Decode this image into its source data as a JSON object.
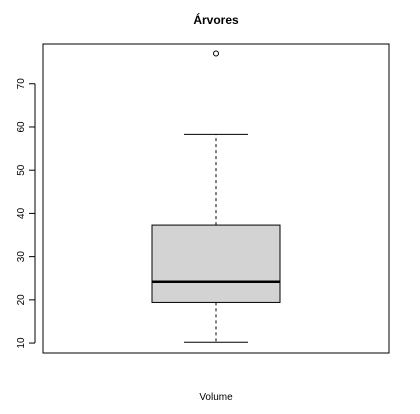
{
  "chart_data": {
    "type": "boxplot",
    "title": "Árvores",
    "xlabel": "Volume",
    "ylabel": "",
    "ylim": [
      7.7,
      79.2
    ],
    "yticks": [
      10,
      20,
      30,
      40,
      50,
      60,
      70
    ],
    "ytick_labels": [
      "10",
      "20",
      "30",
      "40",
      "50",
      "60",
      "70"
    ],
    "grid": false,
    "box": {
      "min": 10.2,
      "q1": 19.4,
      "median": 24.2,
      "q3": 37.3,
      "max": 58.3,
      "outliers": [
        77.0
      ],
      "fill": "#d3d3d3"
    }
  }
}
